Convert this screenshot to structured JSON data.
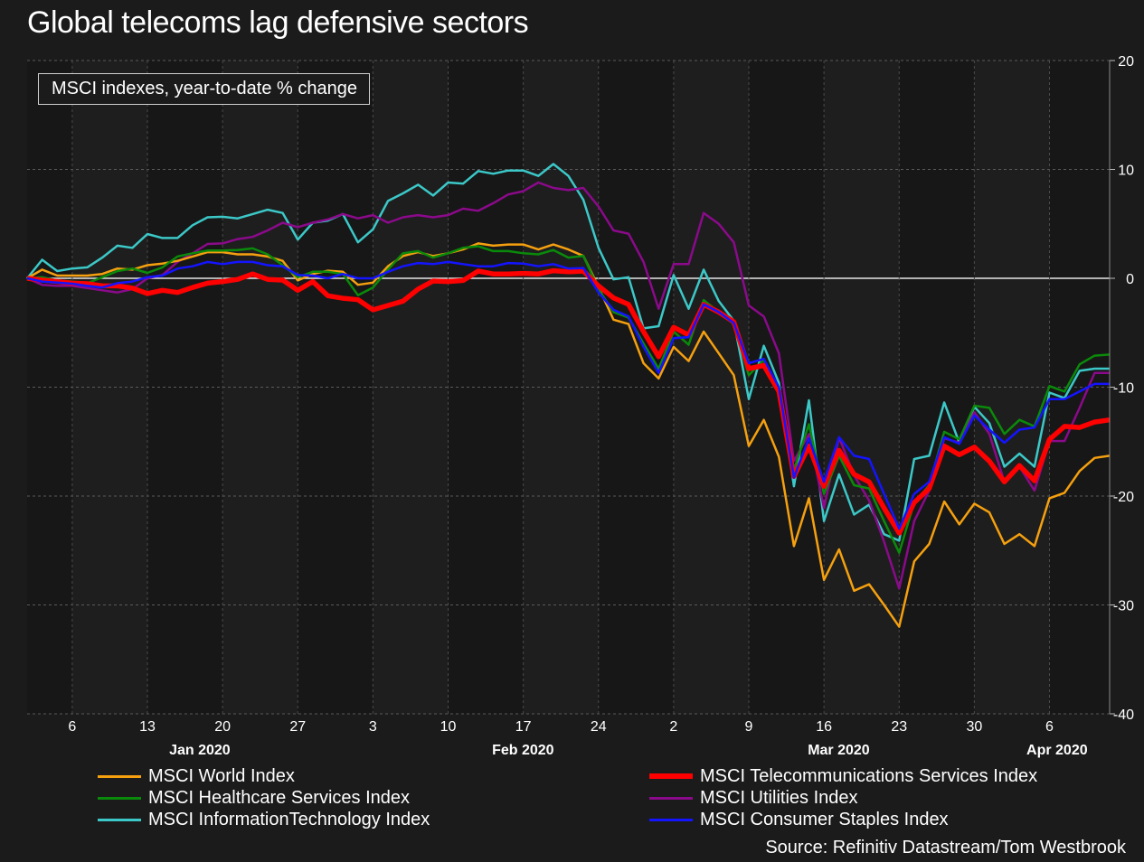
{
  "chart_data": {
    "type": "line",
    "title": "Global telecoms lag defensive sectors",
    "subtitle": "MSCI indexes, year-to-date % change",
    "source": "Source: Refinitiv Datastream/Tom Westbrook",
    "ylim": [
      -40,
      20
    ],
    "yticks": [
      20,
      10,
      0,
      -10,
      -20,
      -30,
      -40
    ],
    "y_axis_side": "right",
    "grid": true,
    "legend_placement": "bottom",
    "x_tick_labels": [
      {
        "date": "2020-01-06",
        "label": "6"
      },
      {
        "date": "2020-01-13",
        "label": "13"
      },
      {
        "date": "2020-01-20",
        "label": "20"
      },
      {
        "date": "2020-01-27",
        "label": "27"
      },
      {
        "date": "2020-02-03",
        "label": "3"
      },
      {
        "date": "2020-02-10",
        "label": "10"
      },
      {
        "date": "2020-02-17",
        "label": "17"
      },
      {
        "date": "2020-02-24",
        "label": "24"
      },
      {
        "date": "2020-03-02",
        "label": "2"
      },
      {
        "date": "2020-03-09",
        "label": "9"
      },
      {
        "date": "2020-03-16",
        "label": "16"
      },
      {
        "date": "2020-03-23",
        "label": "23"
      },
      {
        "date": "2020-03-30",
        "label": "30"
      },
      {
        "date": "2020-04-06",
        "label": "6"
      }
    ],
    "month_labels": [
      {
        "month": "2020-01",
        "label": "Jan 2020"
      },
      {
        "month": "2020-02",
        "label": "Feb 2020"
      },
      {
        "month": "2020-03",
        "label": "Mar 2020"
      },
      {
        "month": "2020-04",
        "label": "Apr 2020"
      }
    ],
    "x": [
      "2020-01-01",
      "2020-01-02",
      "2020-01-03",
      "2020-01-06",
      "2020-01-07",
      "2020-01-08",
      "2020-01-09",
      "2020-01-10",
      "2020-01-13",
      "2020-01-14",
      "2020-01-15",
      "2020-01-16",
      "2020-01-17",
      "2020-01-20",
      "2020-01-21",
      "2020-01-22",
      "2020-01-23",
      "2020-01-24",
      "2020-01-27",
      "2020-01-28",
      "2020-01-29",
      "2020-01-30",
      "2020-01-31",
      "2020-02-03",
      "2020-02-04",
      "2020-02-05",
      "2020-02-06",
      "2020-02-07",
      "2020-02-10",
      "2020-02-11",
      "2020-02-12",
      "2020-02-13",
      "2020-02-14",
      "2020-02-17",
      "2020-02-18",
      "2020-02-19",
      "2020-02-20",
      "2020-02-21",
      "2020-02-24",
      "2020-02-25",
      "2020-02-26",
      "2020-02-27",
      "2020-02-28",
      "2020-03-02",
      "2020-03-03",
      "2020-03-04",
      "2020-03-05",
      "2020-03-06",
      "2020-03-09",
      "2020-03-10",
      "2020-03-11",
      "2020-03-12",
      "2020-03-13",
      "2020-03-16",
      "2020-03-17",
      "2020-03-18",
      "2020-03-19",
      "2020-03-20",
      "2020-03-23",
      "2020-03-24",
      "2020-03-25",
      "2020-03-26",
      "2020-03-27",
      "2020-03-30",
      "2020-03-31",
      "2020-04-01",
      "2020-04-02",
      "2020-04-03",
      "2020-04-06",
      "2020-04-07",
      "2020-04-08",
      "2020-04-09",
      "2020-04-10"
    ],
    "series": [
      {
        "name": "MSCI InformationTechnology Index",
        "color": "#3cc8c8",
        "values": [
          0,
          1.7,
          0.66,
          0.9,
          1.0,
          1.9,
          3.0,
          2.8,
          4.07,
          3.7,
          3.7,
          4.87,
          5.6,
          5.65,
          5.5,
          5.9,
          6.3,
          6.0,
          3.55,
          5.1,
          5.3,
          5.9,
          3.3,
          4.5,
          7.1,
          7.8,
          8.6,
          7.6,
          8.8,
          8.7,
          9.85,
          9.6,
          9.9,
          9.9,
          9.4,
          10.5,
          9.4,
          7.2,
          2.8,
          -0.1,
          0.1,
          -4.6,
          -4.4,
          0.3,
          -2.8,
          0.8,
          -2.1,
          -3.9,
          -11.1,
          -6.2,
          -9.6,
          -19.1,
          -11.2,
          -22.3,
          -18.0,
          -21.7,
          -20.8,
          -23.5,
          -24.1,
          -16.6,
          -16.3,
          -11.4,
          -15.1,
          -11.8,
          -13.3,
          -17.3,
          -16.1,
          -17.3,
          -10.5,
          -11.0,
          -8.5,
          -8.3,
          -8.3
        ]
      },
      {
        "name": "MSCI Utilities Index",
        "color": "#8b0a8b",
        "values": [
          0,
          -0.6,
          -0.7,
          -0.7,
          -0.9,
          -1.1,
          -1.3,
          -1.0,
          0,
          0.3,
          1.5,
          2.3,
          3.15,
          3.2,
          3.6,
          3.8,
          4.4,
          5.1,
          4.7,
          5.1,
          5.4,
          5.9,
          5.5,
          5.8,
          5.1,
          5.6,
          5.8,
          5.6,
          5.8,
          6.4,
          6.2,
          6.9,
          7.7,
          8.0,
          8.8,
          8.3,
          8.1,
          8.3,
          6.6,
          4.4,
          4.1,
          1.5,
          -2.8,
          1.3,
          1.3,
          6.0,
          5.0,
          3.3,
          -2.5,
          -3.5,
          -6.9,
          -16.8,
          -14.3,
          -21.1,
          -14.6,
          -18.1,
          -20.4,
          -24.2,
          -28.5,
          -22.3,
          -19.5,
          -14.7,
          -15.1,
          -12.3,
          -14.3,
          -18.7,
          -17.3,
          -19.5,
          -14.95,
          -14.95,
          -11.9,
          -8.7,
          -8.7
        ]
      },
      {
        "name": "MSCI World Index",
        "color": "#f5a00f",
        "values": [
          0,
          0.8,
          0.25,
          0.25,
          0.25,
          0.4,
          0.9,
          0.8,
          1.2,
          1.35,
          1.6,
          2.0,
          2.4,
          2.4,
          2.2,
          2.2,
          2.0,
          1.6,
          -0.2,
          0.4,
          0.7,
          0.6,
          -0.6,
          -0.4,
          1.1,
          2.05,
          2.4,
          2.05,
          2.3,
          2.65,
          3.2,
          3.0,
          3.1,
          3.1,
          2.65,
          3.1,
          2.65,
          2.05,
          -0.8,
          -3.8,
          -4.2,
          -7.8,
          -9.2,
          -6.3,
          -7.6,
          -4.9,
          -6.9,
          -8.9,
          -15.4,
          -13.0,
          -16.4,
          -24.6,
          -20.2,
          -27.7,
          -24.9,
          -28.7,
          -28.1,
          -30.0,
          -32.0,
          -26.0,
          -24.4,
          -20.5,
          -22.6,
          -20.7,
          -21.5,
          -24.4,
          -23.5,
          -24.6,
          -20.2,
          -19.7,
          -17.7,
          -16.5,
          -16.3
        ]
      },
      {
        "name": "MSCI Healthcare Services Index",
        "color": "#0a8a0a",
        "values": [
          0,
          0.1,
          -0.2,
          -0.3,
          -0.45,
          0.1,
          0.66,
          0.9,
          0.5,
          1.0,
          2.0,
          2.3,
          2.55,
          2.55,
          2.6,
          2.75,
          2.2,
          1.2,
          0.1,
          0.6,
          0.6,
          0.4,
          -1.55,
          -0.85,
          0.8,
          2.3,
          2.5,
          1.9,
          2.3,
          2.8,
          2.95,
          2.5,
          2.5,
          2.3,
          2.2,
          2.6,
          1.9,
          2.05,
          -1.0,
          -3.1,
          -3.6,
          -6.0,
          -8.3,
          -4.9,
          -6.1,
          -2.0,
          -3.1,
          -4.2,
          -8.9,
          -7.5,
          -10.3,
          -17.6,
          -13.4,
          -19.8,
          -16.3,
          -19.0,
          -19.3,
          -22.3,
          -25.2,
          -20.6,
          -19.0,
          -14.1,
          -14.8,
          -11.7,
          -11.9,
          -14.3,
          -13.0,
          -13.6,
          -9.9,
          -10.4,
          -7.9,
          -7.1,
          -7.0
        ]
      },
      {
        "name": "MSCI Telecommunications Services Index",
        "color": "#ff0000",
        "thick": true,
        "values": [
          0,
          -0.17,
          -0.3,
          -0.45,
          -0.5,
          -0.7,
          -0.7,
          -0.9,
          -1.4,
          -1.1,
          -1.3,
          -0.85,
          -0.45,
          -0.3,
          -0.1,
          0.4,
          -0.1,
          -0.17,
          -1.1,
          -0.3,
          -1.6,
          -1.83,
          -1.97,
          -2.9,
          -2.5,
          -2.1,
          -1.0,
          -0.25,
          -0.3,
          -0.2,
          0.66,
          0.4,
          0.4,
          0.45,
          0.4,
          0.7,
          0.6,
          0.66,
          -0.7,
          -1.8,
          -2.4,
          -4.9,
          -7.2,
          -4.5,
          -5.2,
          -2.4,
          -3.1,
          -4.0,
          -8.3,
          -8.0,
          -10.4,
          -18.2,
          -15.4,
          -19.1,
          -15.8,
          -18.0,
          -18.7,
          -21.1,
          -23.4,
          -20.6,
          -19.3,
          -15.4,
          -16.2,
          -15.5,
          -16.8,
          -18.7,
          -17.2,
          -18.6,
          -14.8,
          -13.6,
          -13.7,
          -13.2,
          -13.0
        ]
      },
      {
        "name": "MSCI Consumer Staples Index",
        "color": "#1414ff",
        "values": [
          0,
          -0.3,
          -0.4,
          -0.5,
          -0.7,
          -0.85,
          -0.45,
          -0.3,
          0.1,
          0.25,
          0.9,
          1.1,
          1.5,
          1.3,
          1.5,
          1.5,
          1.2,
          1.1,
          0.3,
          0.25,
          0,
          0.4,
          0,
          0,
          0.6,
          1.1,
          1.4,
          1.3,
          1.5,
          1.3,
          1.1,
          1.1,
          1.4,
          1.35,
          1.1,
          1.3,
          0.9,
          0.95,
          -1.3,
          -2.9,
          -3.5,
          -6.3,
          -8.7,
          -5.5,
          -5.4,
          -2.4,
          -3.1,
          -4.1,
          -7.8,
          -7.4,
          -10.0,
          -18.3,
          -14.7,
          -18.7,
          -14.6,
          -16.3,
          -16.6,
          -19.8,
          -23.0,
          -19.8,
          -18.7,
          -14.6,
          -15.2,
          -12.6,
          -13.9,
          -15.1,
          -13.9,
          -13.7,
          -11.1,
          -11.1,
          -10.4,
          -9.7,
          -9.7
        ]
      }
    ],
    "legend_order": [
      "MSCI World Index",
      "MSCI Healthcare Services Index",
      "MSCI InformationTechnology Index",
      "MSCI Telecommunications Services Index",
      "MSCI Utilities Index",
      "MSCI Consumer Staples Index"
    ]
  }
}
